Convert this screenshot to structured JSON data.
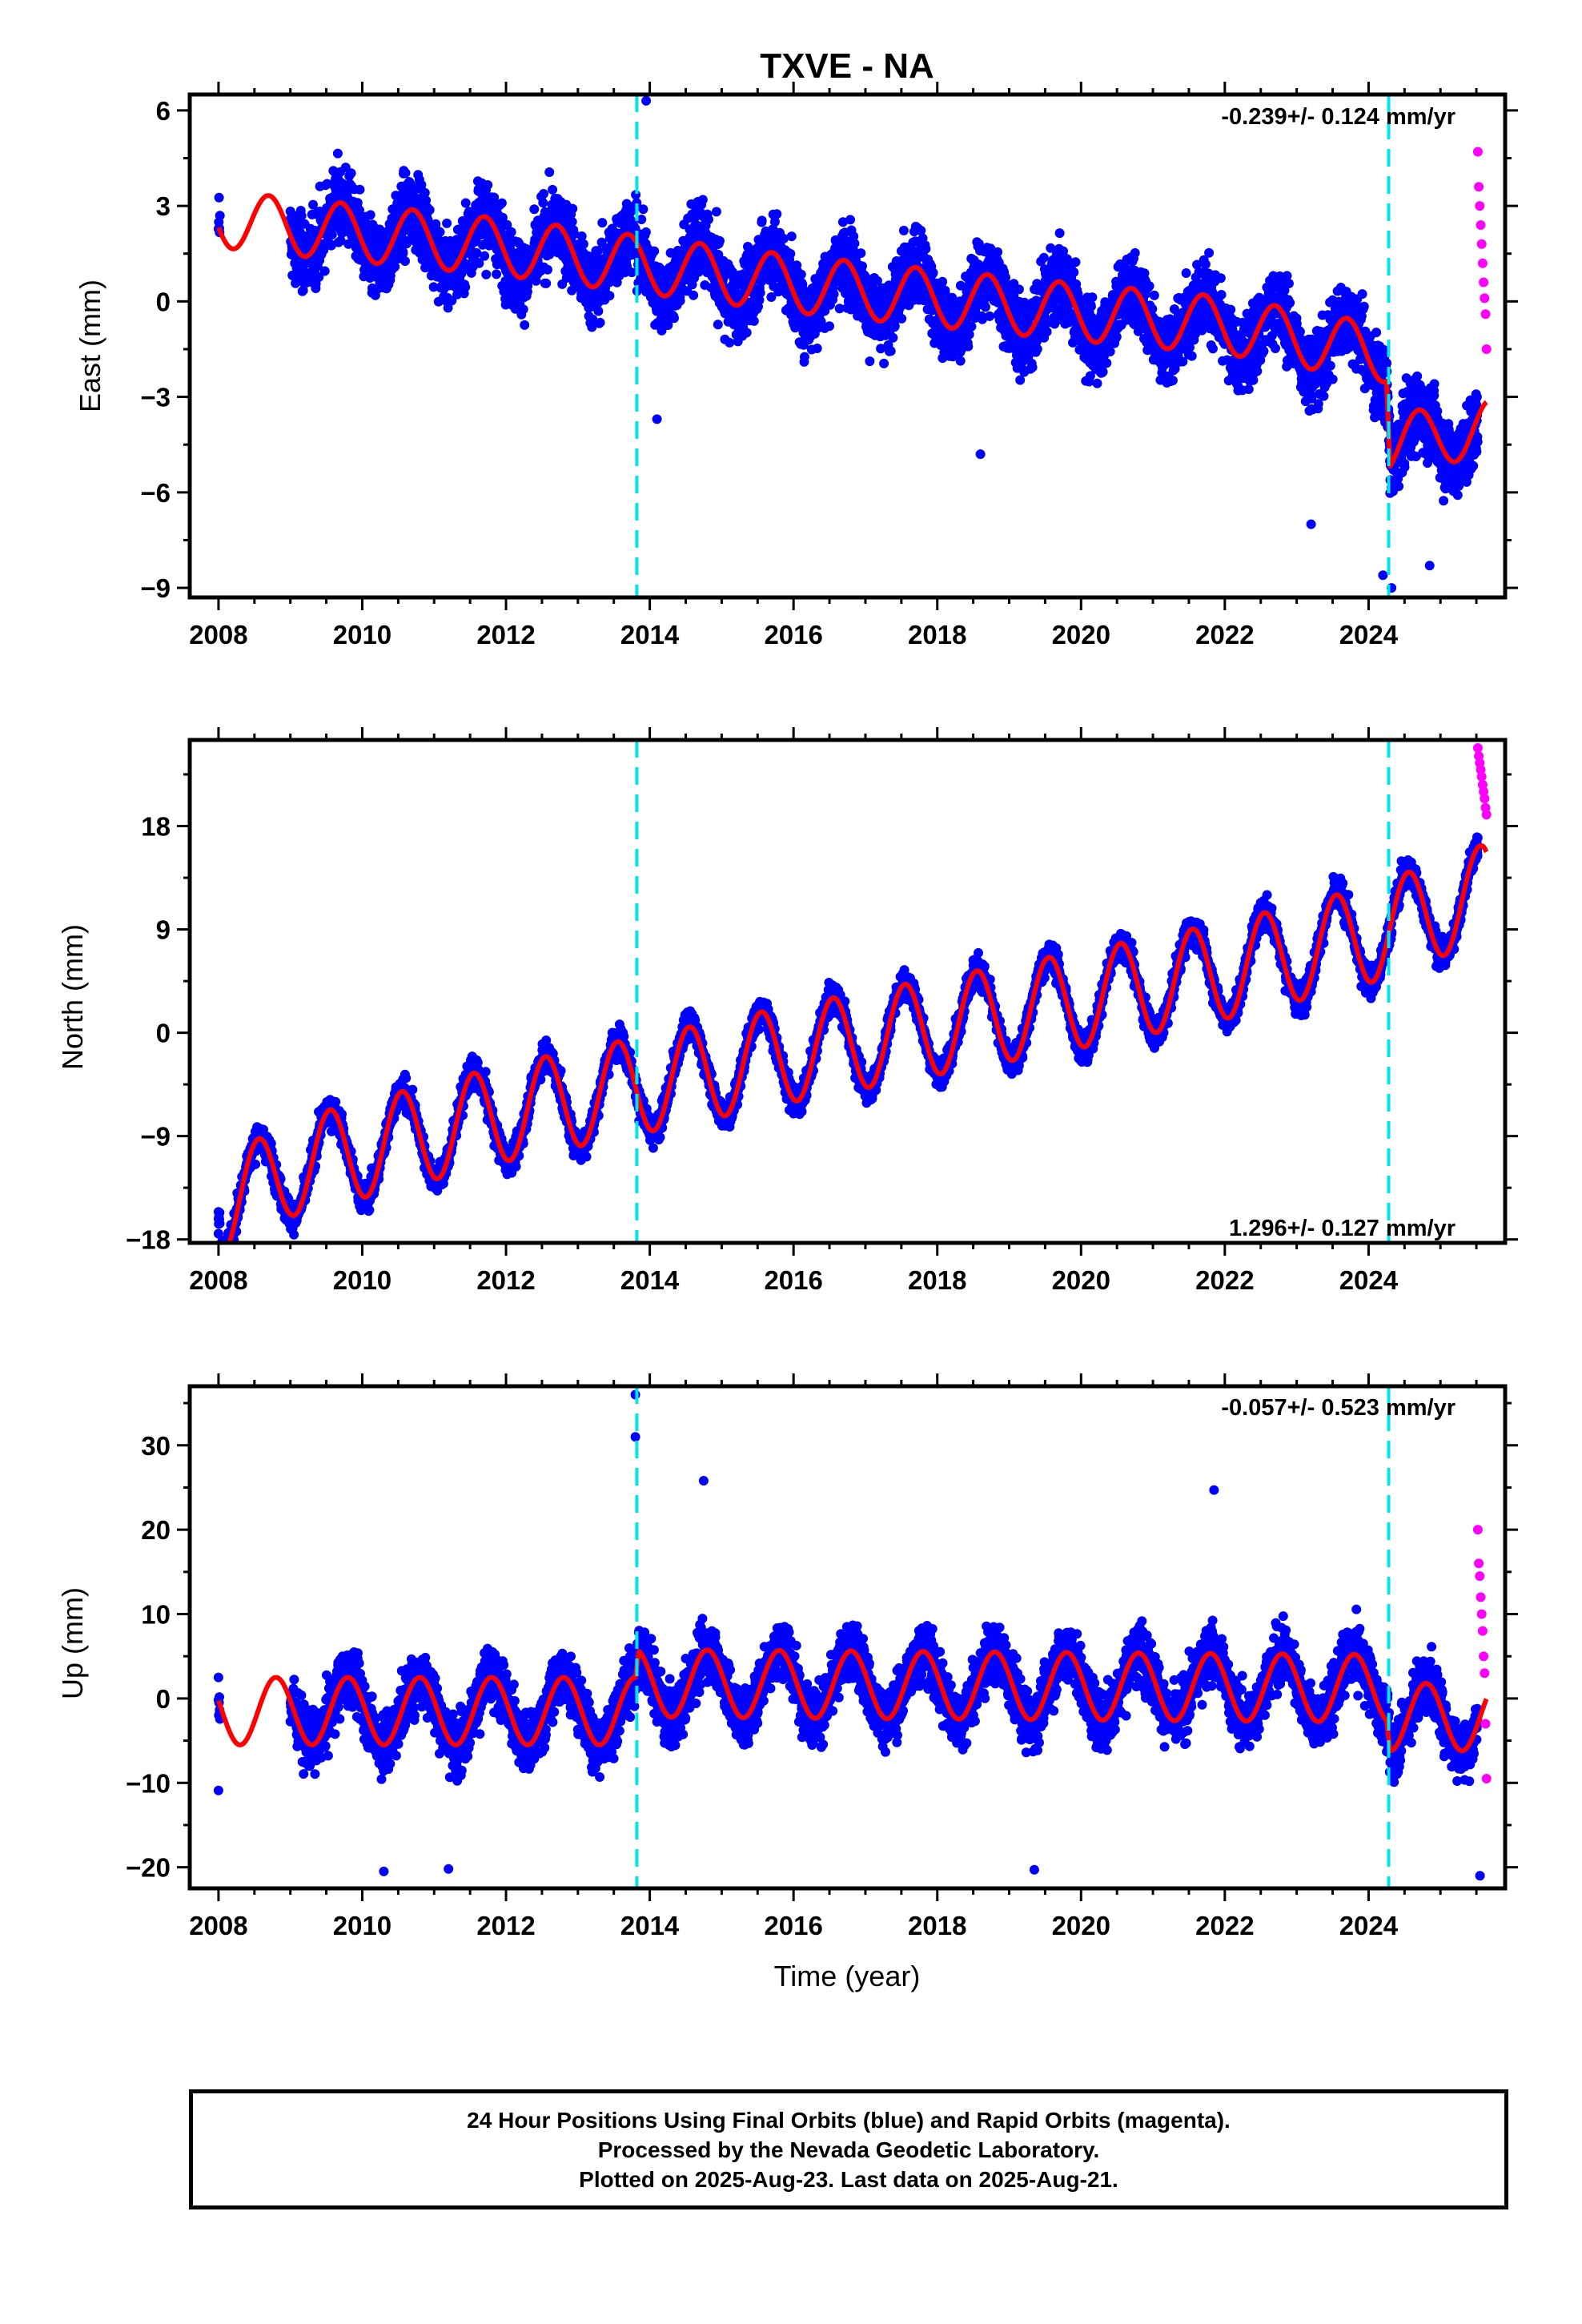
{
  "title": "TXVE - NA",
  "xlabel": "Time (year)",
  "caption": {
    "line1": "24 Hour Positions Using Final Orbits (blue) and Rapid Orbits (magenta).",
    "line2": "Processed by the Nevada Geodetic Laboratory.",
    "line3": "Plotted on 2025-Aug-23. Last data on 2025-Aug-21."
  },
  "colors": {
    "final_orbits": "#0000ff",
    "rapid_orbits": "#ff00ff",
    "model_fit": "#ff0000",
    "event_lines": "#00e5ee"
  },
  "chart_data": [
    {
      "type": "scatter",
      "component": "east",
      "ylabel": "East (mm)",
      "xlim": [
        2007.6,
        2025.9
      ],
      "ylim": [
        -9.3,
        6.5
      ],
      "xticks": [
        2008,
        2010,
        2012,
        2014,
        2016,
        2018,
        2020,
        2022,
        2024
      ],
      "yticks": [
        -9,
        -6,
        -3,
        0,
        3,
        6
      ],
      "ytick_labels": [
        "−9",
        "−6",
        "−3",
        "0",
        "3",
        "6"
      ],
      "rate_label": "-0.239+/- 0.124 mm/yr",
      "rate_position": "top-right",
      "event_lines_x": [
        2013.82,
        2024.28
      ],
      "model": {
        "knots": [
          [
            2008.0,
            2.6
          ],
          [
            2009.0,
            2.35
          ],
          [
            2012.0,
            1.7
          ],
          [
            2016.0,
            0.55
          ],
          [
            2020.0,
            -0.35
          ],
          [
            2022.0,
            -0.75
          ],
          [
            2024.25,
            -1.65
          ],
          [
            2024.3,
            -4.45
          ],
          [
            2025.6,
            -4.0
          ]
        ],
        "annual_amplitude": 0.9,
        "annual_phase_peak": 0.7
      },
      "scatter_scale": 1.15,
      "final_span": [
        2009.0,
        2025.52
      ],
      "rapid_span": [
        2025.52,
        2025.64
      ],
      "extremes": [
        [
          2013.95,
          6.3
        ],
        [
          2014.1,
          -3.7
        ],
        [
          2024.2,
          -8.6
        ],
        [
          2024.32,
          -9.0
        ],
        [
          2018.6,
          -4.8
        ],
        [
          2023.2,
          -7.0
        ],
        [
          2024.85,
          -8.3
        ]
      ],
      "rapid_values": [
        4.7,
        3.6,
        3.0,
        2.4,
        1.8,
        1.2,
        0.6,
        0.1,
        -0.4,
        -1.5
      ]
    },
    {
      "type": "scatter",
      "component": "north",
      "ylabel": "North (mm)",
      "xlim": [
        2007.6,
        2025.9
      ],
      "ylim": [
        -18.3,
        25.5
      ],
      "xticks": [
        2008,
        2010,
        2012,
        2014,
        2016,
        2018,
        2020,
        2022,
        2024
      ],
      "yticks": [
        -18,
        -9,
        0,
        9,
        18
      ],
      "ytick_labels": [
        "−18",
        "−9",
        "0",
        "9",
        "18"
      ],
      "rate_label": "1.296+/- 0.127 mm/yr",
      "rate_position": "bottom-right",
      "event_lines_x": [
        2013.82,
        2024.28
      ],
      "model": {
        "knots": [
          [
            2008.0,
            -15.5
          ],
          [
            2009.0,
            -11.8
          ],
          [
            2012.0,
            -7.0
          ],
          [
            2016.0,
            -1.8
          ],
          [
            2020.0,
            2.9
          ],
          [
            2022.0,
            5.4
          ],
          [
            2024.0,
            8.5
          ],
          [
            2025.6,
            12.2
          ]
        ],
        "annual_amplitude": 4.2,
        "annual_phase_peak": 0.55
      },
      "scatter_scale": 1.25,
      "final_span": [
        2008.0,
        2025.52
      ],
      "rapid_span": [
        2025.52,
        2025.64
      ],
      "extremes": [
        [
          2008.0,
          -17.5
        ],
        [
          2008.0,
          -16.2
        ]
      ],
      "rapid_values": [
        24.8,
        24.1,
        23.5,
        22.9,
        22.3,
        21.6,
        21.0,
        20.4,
        19.6,
        19.0
      ]
    },
    {
      "type": "scatter",
      "component": "up",
      "ylabel": "Up (mm)",
      "xlim": [
        2007.6,
        2025.9
      ],
      "ylim": [
        -22.5,
        37.0
      ],
      "xticks": [
        2008,
        2010,
        2012,
        2014,
        2016,
        2018,
        2020,
        2022,
        2024
      ],
      "yticks": [
        -20,
        -10,
        0,
        10,
        20,
        30
      ],
      "ytick_labels": [
        "−20",
        "−10",
        "0",
        "10",
        "20",
        "30"
      ],
      "rate_label": "-0.057+/- 0.523 mm/yr",
      "rate_position": "top-right",
      "event_lines_x": [
        2013.82,
        2024.28
      ],
      "model": {
        "knots": [
          [
            2008.0,
            -1.5
          ],
          [
            2013.8,
            -1.5
          ],
          [
            2013.85,
            1.8
          ],
          [
            2024.25,
            1.2
          ],
          [
            2024.3,
            -2.2
          ],
          [
            2025.6,
            -2.2
          ]
        ],
        "annual_amplitude": 4.0,
        "annual_phase_peak": 0.8
      },
      "scatter_scale": 3.4,
      "final_span": [
        2009.0,
        2025.52
      ],
      "rapid_span": [
        2025.52,
        2025.64
      ],
      "extremes": [
        [
          2013.8,
          36.0
        ],
        [
          2013.8,
          31.0
        ],
        [
          2014.75,
          25.8
        ],
        [
          2021.85,
          24.7
        ],
        [
          2019.35,
          -20.3
        ],
        [
          2025.55,
          -21.0
        ],
        [
          2010.3,
          -20.5
        ],
        [
          2011.2,
          -20.2
        ],
        [
          2008.0,
          -10.9
        ],
        [
          2008.0,
          2.5
        ]
      ],
      "rapid_values": [
        20.0,
        16.0,
        14.5,
        12.0,
        10.0,
        8.0,
        5.0,
        3.0,
        -3.0,
        -9.5
      ]
    }
  ]
}
